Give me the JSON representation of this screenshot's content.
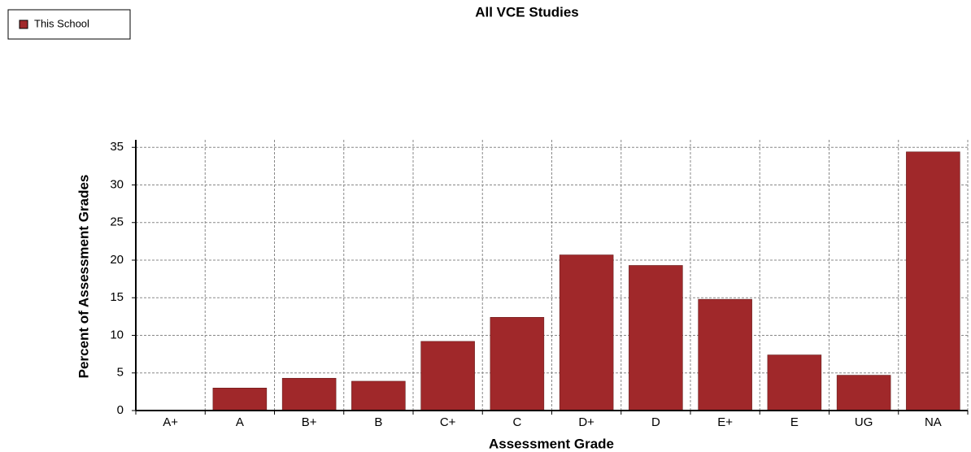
{
  "chart_data": {
    "type": "bar",
    "title": "All VCE Studies",
    "xlabel": "Assessment Grade",
    "ylabel": "Percent of Assessment Grades",
    "categories": [
      "A+",
      "A",
      "B+",
      "B",
      "C+",
      "C",
      "D+",
      "D",
      "E+",
      "E",
      "UG",
      "NA"
    ],
    "series": [
      {
        "name": "This School",
        "color": "#a0282a",
        "values": [
          0,
          3.0,
          4.3,
          3.9,
          9.2,
          12.4,
          20.7,
          19.3,
          14.8,
          7.4,
          4.7,
          34.4
        ]
      }
    ],
    "ylim": [
      0,
      36
    ],
    "yticks": [
      0,
      5,
      10,
      15,
      20,
      25,
      30,
      35
    ],
    "grid": true,
    "legend": "top-left"
  }
}
